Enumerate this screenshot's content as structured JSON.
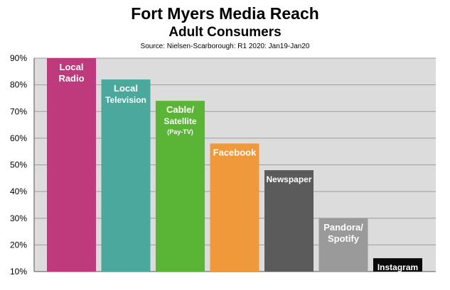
{
  "chart_data": {
    "type": "bar",
    "title": "Fort Myers Media Reach",
    "subtitle": "Adult Consumers",
    "source": "Source: Nielsen-Scarborough: R1 2020:  Jan19-Jan20",
    "categories": [
      [
        "Local",
        "Radio"
      ],
      [
        "Local",
        "Television"
      ],
      [
        "Cable/",
        "Satellite",
        "(Pay-TV)"
      ],
      [
        "Facebook"
      ],
      [
        "Newspaper"
      ],
      [
        "Pandora/",
        "Spotify"
      ],
      [
        "Instagram"
      ]
    ],
    "values": [
      90,
      82,
      74,
      58,
      48,
      30,
      15
    ],
    "colors": [
      "#bf3a7d",
      "#4aa89d",
      "#5ab436",
      "#f0993a",
      "#5b5b5b",
      "#9a9a9a",
      "#0a0a0a"
    ],
    "yticks": [
      "10%",
      "20%",
      "30%",
      "40%",
      "50%",
      "60%",
      "70%",
      "80%",
      "90%"
    ],
    "ylim": [
      10,
      90
    ],
    "grid": true,
    "plot_background": "#dcdcdc"
  }
}
